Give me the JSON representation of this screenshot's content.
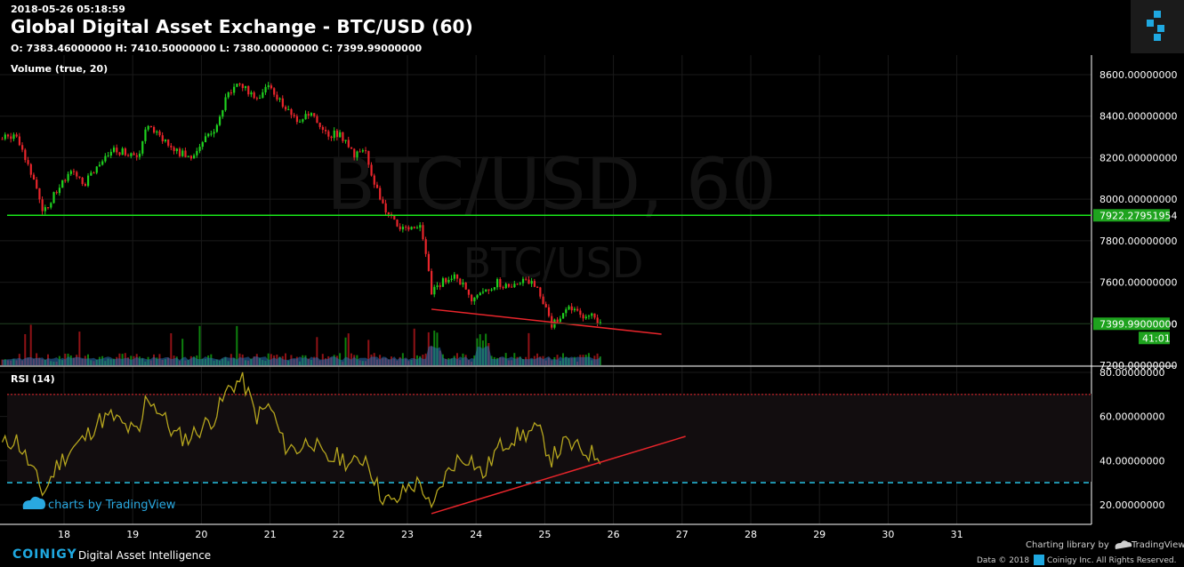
{
  "header": {
    "timestamp": "2018-05-26 05:18:59",
    "title": "Global Digital Asset Exchange - BTC/USD (60)",
    "ohlc": "O: 7383.46000000 H: 7410.50000000 L: 7380.00000000 C: 7399.99000000"
  },
  "watermark": {
    "big": "BTC/USD, 60",
    "small": "BTC/USD"
  },
  "volume_label": "Volume (true, 20)",
  "rsi_label": "RSI (14)",
  "tv_attribution": "charts by TradingView",
  "footer": {
    "brand": "COINIGY",
    "tagline": "Digital Asset Intelligence",
    "charting_lib": "Charting library by",
    "tv_name": "TradingView",
    "data_label": "Data © 2018",
    "rights": "Coinigy Inc. All Rights Reserved."
  },
  "colors": {
    "up": "#1fd11f",
    "down": "#e8252b",
    "support_line": "#19e619",
    "trend_line": "#e8252b",
    "rsi_line": "#b5a51e",
    "rsi_band_top": "#e8252b",
    "rsi_band_bottom": "#29c4e6",
    "price_tag": "#1ea31e"
  },
  "chart_data": [
    {
      "type": "line",
      "title": "Global Digital Asset Exchange - BTC/USD (60)",
      "note": "candlestick",
      "x_ticks": [
        "18",
        "19",
        "20",
        "21",
        "22",
        "23",
        "24",
        "25",
        "26",
        "27",
        "28",
        "29",
        "30",
        "31"
      ],
      "y_ticks": [
        "8600.00000000",
        "8400.00000000",
        "8200.00000000",
        "8000.00000000",
        "7800.00000000",
        "7600.00000000",
        "7400.00000000",
        "7200.00000000"
      ],
      "ylim": [
        7200,
        8600
      ],
      "horizontal_line": {
        "value": 7922.27951954,
        "label": "7922.27951954"
      },
      "last_price": {
        "value": 7399.99,
        "label": "7399.99000000"
      },
      "countdown": "41:01",
      "close_series": [
        {
          "day": 17.1,
          "close": 8290
        },
        {
          "day": 17.3,
          "close": 8320
        },
        {
          "day": 17.5,
          "close": 8150
        },
        {
          "day": 17.7,
          "close": 7940
        },
        {
          "day": 17.9,
          "close": 8050
        },
        {
          "day": 18.1,
          "close": 8120
        },
        {
          "day": 18.3,
          "close": 8080
        },
        {
          "day": 18.5,
          "close": 8150
        },
        {
          "day": 18.7,
          "close": 8230
        },
        {
          "day": 18.9,
          "close": 8230
        },
        {
          "day": 19.1,
          "close": 8200
        },
        {
          "day": 19.2,
          "close": 8380
        },
        {
          "day": 19.4,
          "close": 8300
        },
        {
          "day": 19.6,
          "close": 8240
        },
        {
          "day": 19.8,
          "close": 8200
        },
        {
          "day": 20.0,
          "close": 8260
        },
        {
          "day": 20.2,
          "close": 8350
        },
        {
          "day": 20.4,
          "close": 8520
        },
        {
          "day": 20.6,
          "close": 8550
        },
        {
          "day": 20.8,
          "close": 8490
        },
        {
          "day": 21.0,
          "close": 8550
        },
        {
          "day": 21.2,
          "close": 8440
        },
        {
          "day": 21.4,
          "close": 8380
        },
        {
          "day": 21.6,
          "close": 8400
        },
        {
          "day": 21.8,
          "close": 8310
        },
        {
          "day": 22.0,
          "close": 8320
        },
        {
          "day": 22.2,
          "close": 8220
        },
        {
          "day": 22.4,
          "close": 8220
        },
        {
          "day": 22.6,
          "close": 7990
        },
        {
          "day": 22.8,
          "close": 7890
        },
        {
          "day": 23.0,
          "close": 7840
        },
        {
          "day": 23.2,
          "close": 7880
        },
        {
          "day": 23.35,
          "close": 7560
        },
        {
          "day": 23.5,
          "close": 7600
        },
        {
          "day": 23.7,
          "close": 7650
        },
        {
          "day": 23.9,
          "close": 7520
        },
        {
          "day": 24.1,
          "close": 7560
        },
        {
          "day": 24.3,
          "close": 7600
        },
        {
          "day": 24.5,
          "close": 7570
        },
        {
          "day": 24.7,
          "close": 7620
        },
        {
          "day": 24.9,
          "close": 7580
        },
        {
          "day": 25.1,
          "close": 7400
        },
        {
          "day": 25.3,
          "close": 7470
        },
        {
          "day": 25.5,
          "close": 7450
        },
        {
          "day": 25.7,
          "close": 7430
        },
        {
          "day": 25.85,
          "close": 7400
        }
      ],
      "trend_line": [
        {
          "day": 23.35,
          "price": 7470
        },
        {
          "day": 26.7,
          "price": 7350
        }
      ]
    },
    {
      "type": "line",
      "title": "RSI (14)",
      "y_ticks": [
        "80.00000000",
        "60.00000000",
        "40.00000000",
        "20.00000000"
      ],
      "ylim": [
        13,
        82
      ],
      "bands": [
        70,
        30
      ],
      "values": [
        {
          "day": 17.1,
          "rsi": 47
        },
        {
          "day": 17.3,
          "rsi": 50
        },
        {
          "day": 17.5,
          "rsi": 38
        },
        {
          "day": 17.7,
          "rsi": 25
        },
        {
          "day": 17.9,
          "rsi": 38
        },
        {
          "day": 18.1,
          "rsi": 45
        },
        {
          "day": 18.3,
          "rsi": 50
        },
        {
          "day": 18.5,
          "rsi": 58
        },
        {
          "day": 18.7,
          "rsi": 60
        },
        {
          "day": 18.9,
          "rsi": 55
        },
        {
          "day": 19.1,
          "rsi": 52
        },
        {
          "day": 19.2,
          "rsi": 70
        },
        {
          "day": 19.4,
          "rsi": 62
        },
        {
          "day": 19.6,
          "rsi": 52
        },
        {
          "day": 19.8,
          "rsi": 50
        },
        {
          "day": 20.0,
          "rsi": 55
        },
        {
          "day": 20.2,
          "rsi": 60
        },
        {
          "day": 20.4,
          "rsi": 73
        },
        {
          "day": 20.6,
          "rsi": 77
        },
        {
          "day": 20.8,
          "rsi": 60
        },
        {
          "day": 21.0,
          "rsi": 65
        },
        {
          "day": 21.2,
          "rsi": 47
        },
        {
          "day": 21.4,
          "rsi": 45
        },
        {
          "day": 21.6,
          "rsi": 50
        },
        {
          "day": 21.8,
          "rsi": 40
        },
        {
          "day": 22.0,
          "rsi": 42
        },
        {
          "day": 22.2,
          "rsi": 38
        },
        {
          "day": 22.4,
          "rsi": 42
        },
        {
          "day": 22.6,
          "rsi": 25
        },
        {
          "day": 22.8,
          "rsi": 20
        },
        {
          "day": 23.0,
          "rsi": 28
        },
        {
          "day": 23.2,
          "rsi": 30
        },
        {
          "day": 23.35,
          "rsi": 16
        },
        {
          "day": 23.5,
          "rsi": 30
        },
        {
          "day": 23.7,
          "rsi": 40
        },
        {
          "day": 23.9,
          "rsi": 42
        },
        {
          "day": 24.1,
          "rsi": 33
        },
        {
          "day": 24.3,
          "rsi": 45
        },
        {
          "day": 24.5,
          "rsi": 50
        },
        {
          "day": 24.7,
          "rsi": 52
        },
        {
          "day": 24.9,
          "rsi": 54
        },
        {
          "day": 25.1,
          "rsi": 41
        },
        {
          "day": 25.3,
          "rsi": 48
        },
        {
          "day": 25.5,
          "rsi": 45
        },
        {
          "day": 25.7,
          "rsi": 43
        },
        {
          "day": 25.85,
          "rsi": 42
        }
      ],
      "trend_line": [
        {
          "day": 23.35,
          "rsi": 16
        },
        {
          "day": 27.05,
          "rsi": 51
        }
      ]
    }
  ]
}
